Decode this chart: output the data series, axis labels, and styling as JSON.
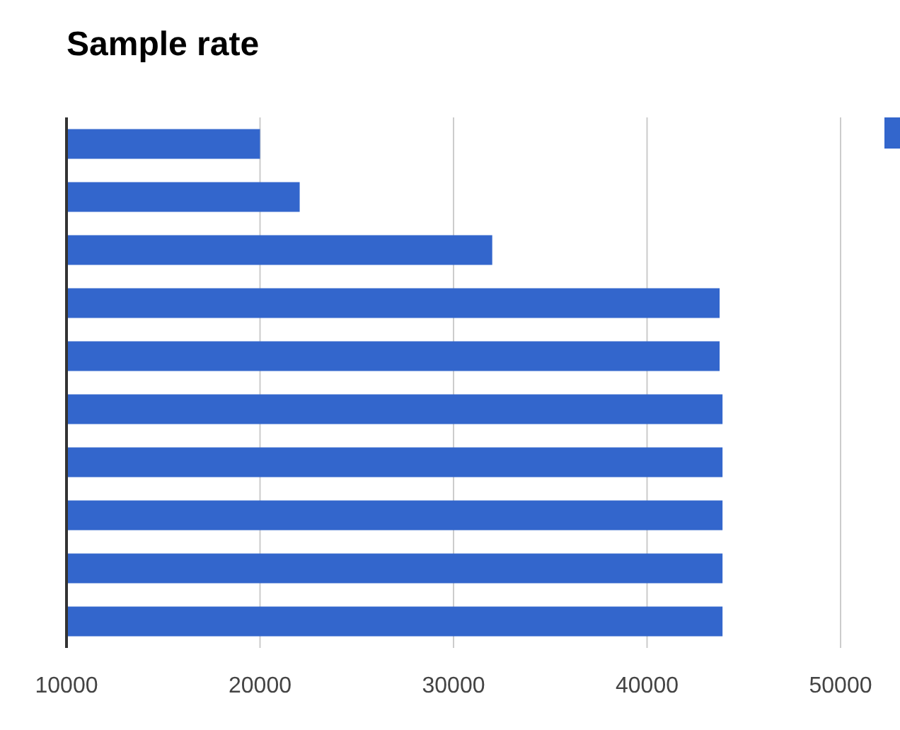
{
  "chart_data": {
    "type": "bar",
    "title": "Sample rate",
    "orientation": "horizontal",
    "categories": [
      null,
      null,
      null,
      null,
      null,
      null,
      null,
      null,
      null,
      null
    ],
    "series": [
      {
        "color": "#3366cc",
        "values": [
          20000,
          22050,
          32000,
          43750,
          43750,
          43900,
          43900,
          43900,
          43900,
          43900
        ]
      }
    ],
    "xlim": [
      10000,
      50000
    ],
    "xticks": [
      10000,
      20000,
      30000,
      40000,
      50000
    ],
    "grid": "x"
  }
}
